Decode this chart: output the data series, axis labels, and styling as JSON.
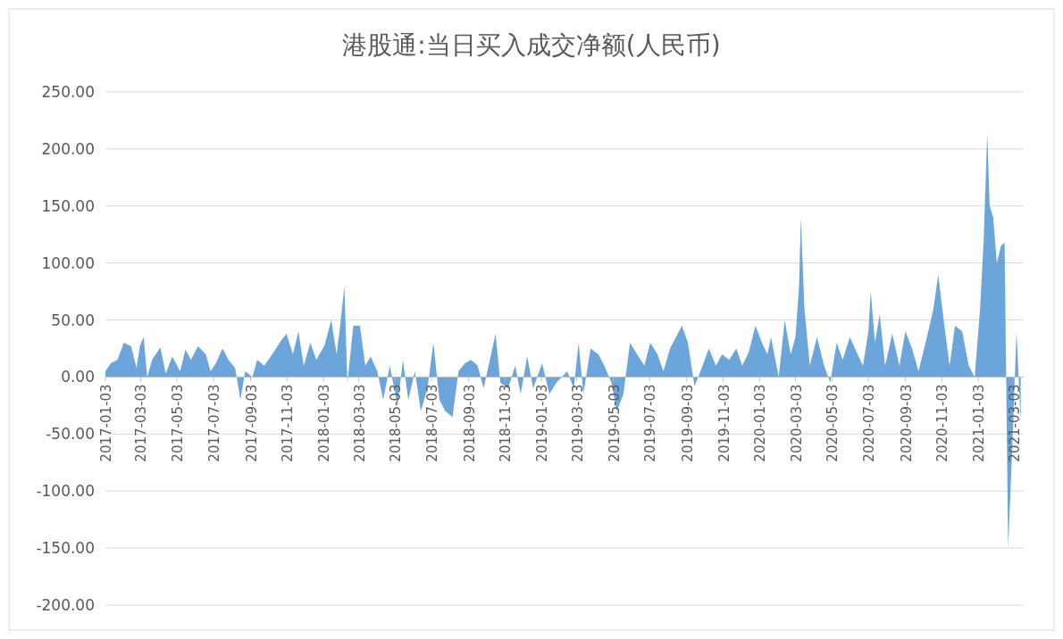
{
  "chart_data": {
    "type": "area",
    "title": "港股通:当日买入成交净额(人民币)",
    "series": [
      {
        "color": "#5b9bd5",
        "x": [
          "2017-01-03",
          "2017-01-12",
          "2017-01-23",
          "2017-02-03",
          "2017-02-15",
          "2017-02-24",
          "2017-03-02",
          "2017-03-08",
          "2017-03-14",
          "2017-03-22",
          "2017-04-05",
          "2017-04-14",
          "2017-04-25",
          "2017-05-08",
          "2017-05-17",
          "2017-05-26",
          "2017-06-07",
          "2017-06-20",
          "2017-06-28",
          "2017-07-07",
          "2017-07-18",
          "2017-07-28",
          "2017-08-08",
          "2017-08-17",
          "2017-08-25",
          "2017-09-06",
          "2017-09-14",
          "2017-09-26",
          "2017-10-12",
          "2017-10-24",
          "2017-11-02",
          "2017-11-13",
          "2017-11-22",
          "2017-12-01",
          "2017-12-12",
          "2017-12-22",
          "2018-01-05",
          "2018-01-16",
          "2018-01-25",
          "2018-02-01",
          "2018-02-07",
          "2018-02-12",
          "2018-02-22",
          "2018-03-05",
          "2018-03-14",
          "2018-03-23",
          "2018-04-03",
          "2018-04-13",
          "2018-04-24",
          "2018-05-07",
          "2018-05-16",
          "2018-05-25",
          "2018-06-05",
          "2018-06-15",
          "2018-06-26",
          "2018-07-06",
          "2018-07-16",
          "2018-07-26",
          "2018-08-07",
          "2018-08-17",
          "2018-08-28",
          "2018-09-07",
          "2018-09-18",
          "2018-09-28",
          "2018-10-18",
          "2018-10-26",
          "2018-11-08",
          "2018-11-20",
          "2018-11-29",
          "2018-12-10",
          "2018-12-20",
          "2019-01-04",
          "2019-01-16",
          "2019-01-28",
          "2019-02-15",
          "2019-02-26",
          "2019-03-06",
          "2019-03-14",
          "2019-03-26",
          "2019-04-08",
          "2019-04-18",
          "2019-04-30",
          "2019-05-09",
          "2019-05-20",
          "2019-05-31",
          "2019-06-12",
          "2019-06-24",
          "2019-07-04",
          "2019-07-16",
          "2019-07-26",
          "2019-08-06",
          "2019-08-16",
          "2019-08-26",
          "2019-09-05",
          "2019-09-16",
          "2019-09-26",
          "2019-10-10",
          "2019-10-22",
          "2019-11-01",
          "2019-11-13",
          "2019-11-25",
          "2019-12-05",
          "2019-12-16",
          "2019-12-27",
          "2020-01-07",
          "2020-01-16",
          "2020-01-22",
          "2020-02-04",
          "2020-02-14",
          "2020-02-24",
          "2020-03-03",
          "2020-03-09",
          "2020-03-12",
          "2020-03-18",
          "2020-03-27",
          "2020-04-08",
          "2020-04-20",
          "2020-04-30",
          "2020-05-11",
          "2020-05-21",
          "2020-06-02",
          "2020-06-15",
          "2020-06-24",
          "2020-07-03",
          "2020-07-07",
          "2020-07-14",
          "2020-07-22",
          "2020-07-31",
          "2020-08-12",
          "2020-08-24",
          "2020-09-03",
          "2020-09-14",
          "2020-09-25",
          "2020-10-09",
          "2020-10-20",
          "2020-10-28",
          "2020-11-06",
          "2020-11-16",
          "2020-11-25",
          "2020-12-07",
          "2020-12-18",
          "2020-12-28",
          "2021-01-06",
          "2021-01-12",
          "2021-01-18",
          "2021-01-22",
          "2021-01-28",
          "2021-02-03",
          "2021-02-10",
          "2021-02-16",
          "2021-02-22",
          "2021-03-01",
          "2021-03-08",
          "2021-03-15"
        ],
        "values": [
          5,
          12,
          15,
          30,
          27,
          8,
          28,
          35,
          0,
          15,
          26,
          3,
          18,
          5,
          24,
          15,
          27,
          20,
          5,
          12,
          25,
          15,
          8,
          -20,
          5,
          0,
          15,
          10,
          22,
          32,
          38,
          20,
          40,
          10,
          30,
          15,
          28,
          50,
          20,
          50,
          80,
          -5,
          45,
          45,
          10,
          18,
          5,
          -20,
          10,
          -25,
          15,
          -20,
          5,
          -30,
          -10,
          30,
          -20,
          -30,
          -35,
          5,
          12,
          15,
          10,
          -10,
          38,
          -5,
          -10,
          10,
          -15,
          18,
          -10,
          12,
          -15,
          -5,
          5,
          -10,
          30,
          -15,
          25,
          20,
          10,
          -5,
          -30,
          -15,
          30,
          20,
          10,
          30,
          20,
          5,
          25,
          35,
          45,
          30,
          -8,
          5,
          25,
          10,
          20,
          15,
          25,
          10,
          22,
          45,
          30,
          20,
          35,
          0,
          50,
          20,
          35,
          80,
          140,
          60,
          10,
          35,
          10,
          -5,
          30,
          15,
          35,
          20,
          10,
          40,
          75,
          30,
          55,
          10,
          38,
          10,
          40,
          25,
          5,
          35,
          60,
          90,
          50,
          10,
          45,
          40,
          10,
          0,
          60,
          120,
          214,
          150,
          140,
          100,
          115,
          118,
          -150,
          -60,
          40,
          -40
        ]
      }
    ],
    "xlim": [
      "2017-01-03",
      "2021-03-20"
    ],
    "xticks": [
      "2017-01-03",
      "2017-03-03",
      "2017-05-03",
      "2017-07-03",
      "2017-09-03",
      "2017-11-03",
      "2018-01-03",
      "2018-03-03",
      "2018-05-03",
      "2018-07-03",
      "2018-09-03",
      "2018-11-03",
      "2019-01-03",
      "2019-03-03",
      "2019-05-03",
      "2019-07-03",
      "2019-09-03",
      "2019-11-03",
      "2020-01-03",
      "2020-03-03",
      "2020-05-03",
      "2020-07-03",
      "2020-09-03",
      "2020-11-03",
      "2021-01-03",
      "2021-03-03"
    ],
    "ylim": [
      -200,
      250
    ],
    "yticks": [
      {
        "value": -200,
        "label": "-200.00"
      },
      {
        "value": -150,
        "label": "-150.00"
      },
      {
        "value": -100,
        "label": "-100.00"
      },
      {
        "value": -50,
        "label": "-50.00"
      },
      {
        "value": 0,
        "label": "0.00"
      },
      {
        "value": 50,
        "label": "50.00"
      },
      {
        "value": 100,
        "label": "100.00"
      },
      {
        "value": 150,
        "label": "150.00"
      },
      {
        "value": 200,
        "label": "200.00"
      },
      {
        "value": 250,
        "label": "250.00"
      }
    ],
    "grid": "y"
  }
}
